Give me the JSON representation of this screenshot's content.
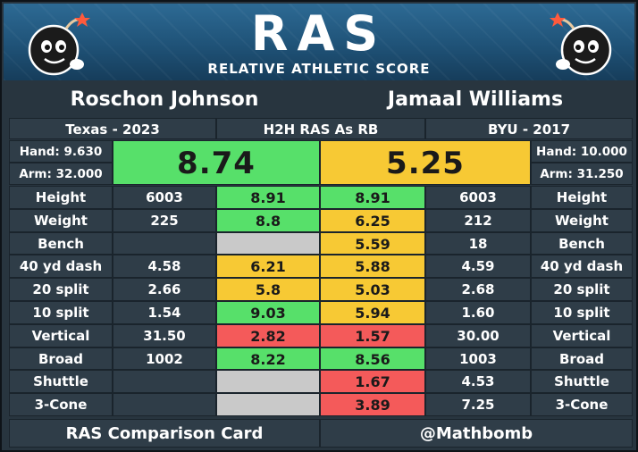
{
  "header": {
    "logo": "RAS",
    "subtitle": "RELATIVE ATHLETIC SCORE"
  },
  "player_left": {
    "name": "Roschon Johnson",
    "school_year": "Texas - 2023",
    "hand": "Hand: 9.630",
    "arm": "Arm: 32.000",
    "ras": "8.74",
    "ras_color": "#57e06a"
  },
  "player_right": {
    "name": "Jamaal Williams",
    "school_year": "BYU - 2017",
    "hand": "Hand: 10.000",
    "arm": "Arm: 31.250",
    "ras": "5.25",
    "ras_color": "#f7c934"
  },
  "comparison_label": "H2H RAS As RB",
  "colors": {
    "green": "#57e06a",
    "yellow": "#f7c934",
    "red": "#f45a5a",
    "gray": "#c9c9c9",
    "panel": "#2f3d48"
  },
  "metrics": [
    {
      "label": "Height",
      "left_val": "6003",
      "left_score": "8.91",
      "left_color": "#57e06a",
      "right_score": "8.91",
      "right_color": "#57e06a",
      "right_val": "6003"
    },
    {
      "label": "Weight",
      "left_val": "225",
      "left_score": "8.8",
      "left_color": "#57e06a",
      "right_score": "6.25",
      "right_color": "#f7c934",
      "right_val": "212"
    },
    {
      "label": "Bench",
      "left_val": "",
      "left_score": "",
      "left_color": "#c9c9c9",
      "right_score": "5.59",
      "right_color": "#f7c934",
      "right_val": "18"
    },
    {
      "label": "40 yd dash",
      "left_val": "4.58",
      "left_score": "6.21",
      "left_color": "#f7c934",
      "right_score": "5.88",
      "right_color": "#f7c934",
      "right_val": "4.59"
    },
    {
      "label": "20 split",
      "left_val": "2.66",
      "left_score": "5.8",
      "left_color": "#f7c934",
      "right_score": "5.03",
      "right_color": "#f7c934",
      "right_val": "2.68"
    },
    {
      "label": "10 split",
      "left_val": "1.54",
      "left_score": "9.03",
      "left_color": "#57e06a",
      "right_score": "5.94",
      "right_color": "#f7c934",
      "right_val": "1.60"
    },
    {
      "label": "Vertical",
      "left_val": "31.50",
      "left_score": "2.82",
      "left_color": "#f45a5a",
      "right_score": "1.57",
      "right_color": "#f45a5a",
      "right_val": "30.00"
    },
    {
      "label": "Broad",
      "left_val": "1002",
      "left_score": "8.22",
      "left_color": "#57e06a",
      "right_score": "8.56",
      "right_color": "#57e06a",
      "right_val": "1003"
    },
    {
      "label": "Shuttle",
      "left_val": "",
      "left_score": "",
      "left_color": "#c9c9c9",
      "right_score": "1.67",
      "right_color": "#f45a5a",
      "right_val": "4.53"
    },
    {
      "label": "3-Cone",
      "left_val": "",
      "left_score": "",
      "left_color": "#c9c9c9",
      "right_score": "3.89",
      "right_color": "#f45a5a",
      "right_val": "7.25"
    }
  ],
  "footer": {
    "left": "RAS Comparison Card",
    "right": "@Mathbomb"
  },
  "icons": {
    "mascot_left": "bomb-mascot-icon",
    "mascot_right": "bomb-mascot-icon"
  }
}
